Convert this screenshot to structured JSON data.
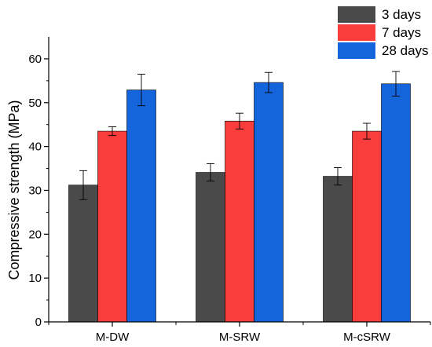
{
  "chart_data": {
    "type": "bar",
    "title": "",
    "xlabel": "",
    "ylabel": "Compressive strength (MPa)",
    "ylim": [
      0,
      65
    ],
    "yticks": [
      0,
      10,
      20,
      30,
      40,
      50,
      60
    ],
    "grid": false,
    "legend_position": "top-right",
    "categories": [
      "M-DW",
      "M-SRW",
      "M-cSRW"
    ],
    "series": [
      {
        "name": "3 days",
        "color": "#4a4a4a",
        "values": [
          31.2,
          34.1,
          33.2
        ],
        "errors": [
          3.3,
          2.0,
          2.0
        ]
      },
      {
        "name": "7 days",
        "color": "#f93c3c",
        "values": [
          43.5,
          45.8,
          43.5
        ],
        "errors": [
          1.0,
          1.8,
          1.8
        ]
      },
      {
        "name": "28 days",
        "color": "#1464dc",
        "values": [
          52.9,
          54.6,
          54.3
        ],
        "errors": [
          3.6,
          2.3,
          2.8
        ]
      }
    ]
  }
}
